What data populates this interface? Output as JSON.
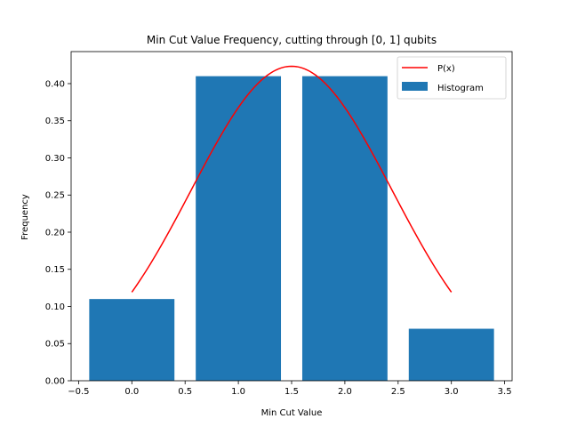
{
  "chart_data": {
    "type": "bar",
    "title": "Min Cut Value Frequency, cutting through [0, 1] qubits",
    "xlabel": "Min Cut Value",
    "ylabel": "Frequency",
    "xlim": [
      -0.57,
      3.57
    ],
    "ylim": [
      0,
      0.4431
    ],
    "x_ticks": [
      -0.5,
      0.0,
      0.5,
      1.0,
      1.5,
      2.0,
      2.5,
      3.0,
      3.5
    ],
    "x_tick_labels": [
      "−0.5",
      "0.0",
      "0.5",
      "1.0",
      "1.5",
      "2.0",
      "2.5",
      "3.0",
      "3.5"
    ],
    "y_ticks": [
      0.0,
      0.05,
      0.1,
      0.15,
      0.2,
      0.25,
      0.3,
      0.35,
      0.4
    ],
    "y_tick_labels": [
      "0.00",
      "0.05",
      "0.10",
      "0.15",
      "0.20",
      "0.25",
      "0.30",
      "0.35",
      "0.40"
    ],
    "bars": {
      "name": "Histogram",
      "color": "#1f77b4",
      "x": [
        0,
        1,
        2,
        3
      ],
      "values": [
        0.11,
        0.41,
        0.41,
        0.07
      ],
      "width": 0.8
    },
    "curve": {
      "name": "P(x)",
      "color": "#ff0000",
      "x_range": [
        0,
        3
      ],
      "mean": 1.5,
      "std": 0.9422,
      "peak": 0.4234
    },
    "legend_location": "upper right",
    "grid": false
  }
}
